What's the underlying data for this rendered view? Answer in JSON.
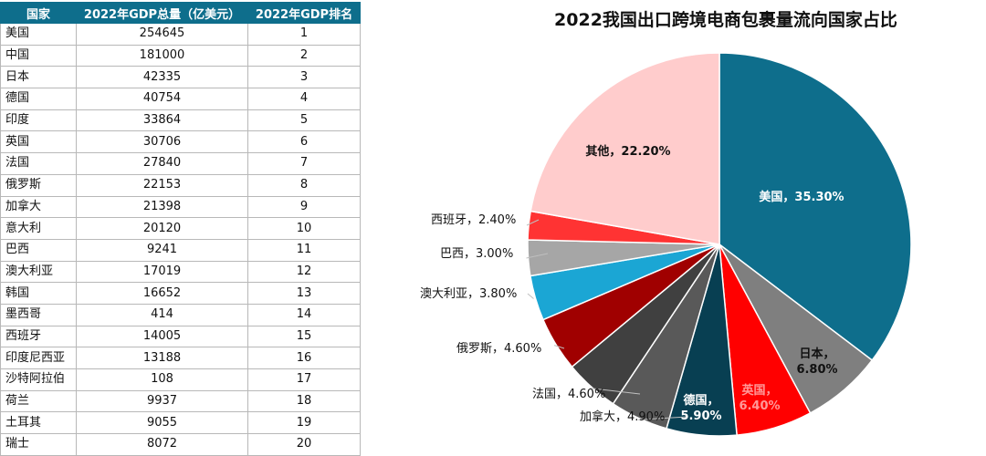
{
  "table": {
    "headers": [
      "国家",
      "2022年GDP总量（亿美元）",
      "2022年GDP排名"
    ],
    "rows": [
      [
        "美国",
        "254645",
        "1"
      ],
      [
        "中国",
        "181000",
        "2"
      ],
      [
        "日本",
        "42335",
        "3"
      ],
      [
        "德国",
        "40754",
        "4"
      ],
      [
        "印度",
        "33864",
        "5"
      ],
      [
        "英国",
        "30706",
        "6"
      ],
      [
        "法国",
        "27840",
        "7"
      ],
      [
        "俄罗斯",
        "22153",
        "8"
      ],
      [
        "加拿大",
        "21398",
        "9"
      ],
      [
        "意大利",
        "20120",
        "10"
      ],
      [
        "巴西",
        "9241",
        "11"
      ],
      [
        "澳大利亚",
        "17019",
        "12"
      ],
      [
        "韩国",
        "16652",
        "13"
      ],
      [
        "墨西哥",
        "414",
        "14"
      ],
      [
        "西班牙",
        "14005",
        "15"
      ],
      [
        "印度尼西亚",
        "13188",
        "16"
      ],
      [
        "沙特阿拉伯",
        "108",
        "17"
      ],
      [
        "荷兰",
        "9937",
        "18"
      ],
      [
        "土耳其",
        "9055",
        "19"
      ],
      [
        "瑞士",
        "8072",
        "20"
      ]
    ]
  },
  "chart_data": {
    "type": "pie",
    "title": "2022我国出口跨境电商包裹量流向国家占比",
    "slices": [
      {
        "name": "美国",
        "value": 35.3,
        "label": "美国，35.30%",
        "color": "#0e6e8c"
      },
      {
        "name": "日本",
        "value": 6.8,
        "label": "日本，\n6.80%",
        "color": "#7f7f7f"
      },
      {
        "name": "英国",
        "value": 6.4,
        "label": "英国，\n6.40%",
        "color": "#ff0000"
      },
      {
        "name": "德国",
        "value": 5.9,
        "label": "德国，\n5.90%",
        "color": "#083f52"
      },
      {
        "name": "加拿大",
        "value": 4.9,
        "label": "加拿大，4.90%",
        "color": "#595959"
      },
      {
        "name": "法国",
        "value": 4.6,
        "label": "法国，4.60%",
        "color": "#404040"
      },
      {
        "name": "俄罗斯",
        "value": 4.6,
        "label": "俄罗斯，4.60%",
        "color": "#a00000"
      },
      {
        "name": "澳大利亚",
        "value": 3.8,
        "label": "澳大利亚，3.80%",
        "color": "#1ba6d4"
      },
      {
        "name": "巴西",
        "value": 3.0,
        "label": "巴西，3.00%",
        "color": "#a6a6a6"
      },
      {
        "name": "西班牙",
        "value": 2.4,
        "label": "西班牙，2.40%",
        "color": "#ff3333"
      },
      {
        "name": "其他",
        "value": 22.2,
        "label": "其他，22.20%",
        "color": "#0b4e66",
        "color_alt": "#ffcccc"
      }
    ]
  }
}
